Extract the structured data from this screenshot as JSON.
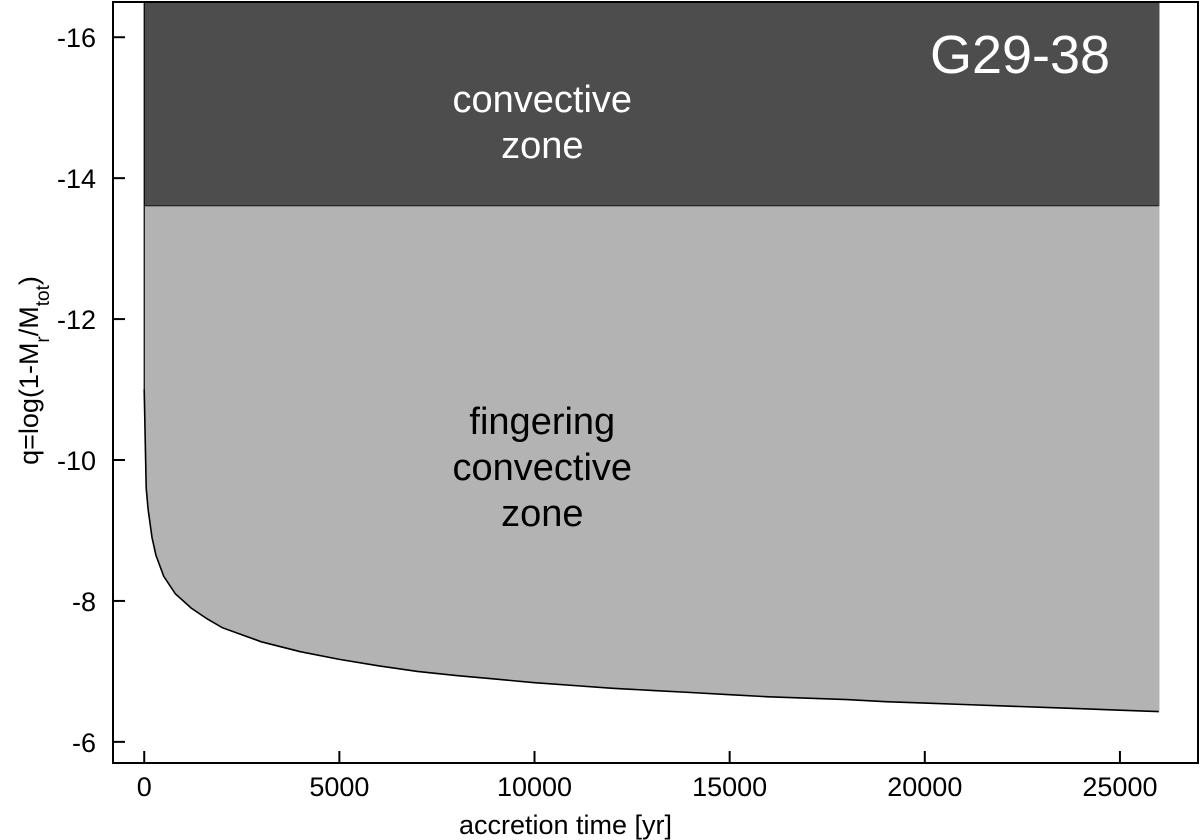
{
  "chart_data": {
    "type": "area",
    "title": "G29-38",
    "xlabel": "accretion time [yr]",
    "ylabel": {
      "base": "q=log(1-M",
      "sub1": "r",
      "mid": "/M",
      "sub2": "tot",
      "end": ")"
    },
    "xlim": [
      -800,
      27000
    ],
    "ylim": [
      -5.7,
      -16.5
    ],
    "y_inverted": true,
    "grid": false,
    "xticks": [
      0,
      5000,
      10000,
      15000,
      20000,
      25000
    ],
    "xtick_labels": [
      "0",
      "5000",
      "10000",
      "15000",
      "20000",
      "25000"
    ],
    "yticks": [
      -16,
      -14,
      -12,
      -10,
      -8,
      -6
    ],
    "ytick_labels": [
      "-16",
      "-14",
      "-12",
      "-10",
      "-8",
      "-6"
    ],
    "series": [
      {
        "label": {
          "lines": [
            "convective",
            "zone"
          ],
          "x": 10200,
          "y_center": -14.8,
          "color": "#ffffff"
        },
        "color": "#4d4d4d",
        "x_range": [
          0,
          26000
        ],
        "lower": [
          [
            0,
            -13.6
          ],
          [
            26000,
            -13.6
          ]
        ],
        "upper": [
          [
            0,
            -16.5
          ],
          [
            26000,
            -16.5
          ]
        ]
      },
      {
        "label": {
          "lines": [
            "fingering",
            "convective",
            "zone"
          ],
          "x": 10200,
          "y_center": -9.9,
          "color": "#000000"
        },
        "color": "#b3b3b3",
        "x_range": [
          0,
          26000
        ],
        "upper": [
          [
            0,
            -13.6
          ],
          [
            26000,
            -13.6
          ]
        ],
        "lower": [
          [
            0,
            -11.0
          ],
          [
            50,
            -9.6
          ],
          [
            100,
            -9.3
          ],
          [
            200,
            -8.9
          ],
          [
            300,
            -8.65
          ],
          [
            500,
            -8.35
          ],
          [
            800,
            -8.1
          ],
          [
            1200,
            -7.9
          ],
          [
            1600,
            -7.75
          ],
          [
            2000,
            -7.62
          ],
          [
            3000,
            -7.42
          ],
          [
            4000,
            -7.28
          ],
          [
            5000,
            -7.17
          ],
          [
            6000,
            -7.08
          ],
          [
            7000,
            -7.0
          ],
          [
            8000,
            -6.94
          ],
          [
            9000,
            -6.89
          ],
          [
            10000,
            -6.84
          ],
          [
            11000,
            -6.8
          ],
          [
            12000,
            -6.76
          ],
          [
            13000,
            -6.73
          ],
          [
            14000,
            -6.7
          ],
          [
            15000,
            -6.67
          ],
          [
            16000,
            -6.64
          ],
          [
            17000,
            -6.62
          ],
          [
            18000,
            -6.6
          ],
          [
            19000,
            -6.57
          ],
          [
            20000,
            -6.55
          ],
          [
            21000,
            -6.53
          ],
          [
            22000,
            -6.51
          ],
          [
            23000,
            -6.49
          ],
          [
            24000,
            -6.47
          ],
          [
            25000,
            -6.45
          ],
          [
            26000,
            -6.43
          ]
        ]
      }
    ]
  }
}
